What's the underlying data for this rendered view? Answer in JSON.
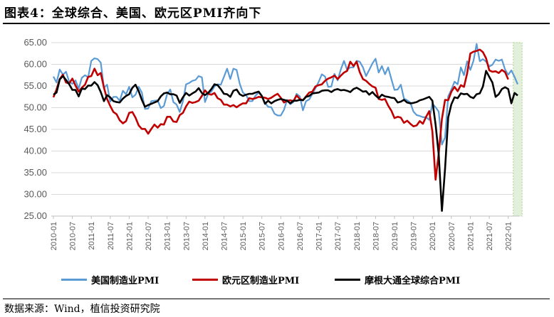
{
  "figure": {
    "title": "图表4：全球综合、美国、欧元区PMI齐向下",
    "source": "数据来源：Wind，植信投资研究院"
  },
  "chart_data": {
    "type": "line",
    "title": "",
    "xlabel": "",
    "ylabel": "",
    "ylim": [
      25,
      65
    ],
    "yticks": [
      "25.00",
      "30.00",
      "35.00",
      "40.00",
      "45.00",
      "50.00",
      "55.00",
      "60.00",
      "65.00"
    ],
    "xtick_labels": [
      "2010-01",
      "2010-07",
      "2011-01",
      "2011-07",
      "2012-01",
      "2012-07",
      "2013-01",
      "2013-07",
      "2014-01",
      "2014-07",
      "2015-01",
      "2015-07",
      "2016-01",
      "2016-07",
      "2017-01",
      "2017-07",
      "2018-01",
      "2018-07",
      "2019-01",
      "2019-07",
      "2020-01",
      "2020-07",
      "2021-01",
      "2021-07",
      "2022-01"
    ],
    "x_start": "2010-01",
    "x_end": "2022-04",
    "shaded_region": {
      "from": "2022-03",
      "to": "2022-05",
      "color": "#e2efda"
    },
    "grid": "horizontal",
    "legend_position": "bottom",
    "series": [
      {
        "name": "美国制造业PMI",
        "color": "#5b9bd5",
        "values": [
          57.2,
          55.8,
          58.8,
          57.6,
          58.3,
          56.0,
          55.5,
          56.3,
          54.4,
          56.9,
          57.5,
          57.0,
          60.8,
          61.4,
          61.2,
          60.4,
          54.6,
          55.3,
          51.4,
          52.5,
          52.5,
          51.6,
          53.9,
          53.1,
          54.8,
          52.4,
          53.0,
          54.8,
          53.5,
          49.7,
          49.8,
          51.5,
          51.6,
          51.7,
          49.9,
          50.4,
          53.1,
          54.2,
          51.3,
          50.7,
          49.0,
          51.5,
          55.4,
          55.7,
          56.2,
          56.4,
          57.3,
          57.0,
          51.3,
          53.2,
          53.7,
          54.9,
          55.4,
          55.3,
          57.1,
          59.0,
          56.6,
          59.0,
          58.7,
          55.5,
          53.5,
          52.9,
          51.5,
          51.5,
          52.8,
          53.5,
          52.7,
          51.1,
          50.2,
          50.1,
          48.6,
          48.2,
          48.2,
          49.5,
          51.8,
          50.8,
          51.3,
          53.2,
          52.6,
          49.4,
          51.5,
          51.9,
          53.2,
          54.5,
          56.0,
          57.7,
          57.2,
          54.8,
          54.9,
          57.8,
          56.3,
          58.8,
          60.8,
          58.7,
          59.3,
          59.3,
          60.8,
          60.6,
          59.3,
          57.3,
          58.7,
          60.2,
          61.3,
          58.1,
          59.6,
          57.7,
          59.3,
          56.6,
          54.1,
          54.2,
          55.3,
          52.1,
          51.7,
          51.2,
          49.1,
          48.3,
          48.1,
          47.8,
          47.8,
          47.2,
          50.9,
          50.1,
          49.1,
          41.5,
          43.1,
          52.6,
          54.2,
          56.0,
          55.4,
          59.3,
          57.5,
          60.7,
          58.7,
          60.8,
          64.7,
          60.7,
          61.2,
          60.6,
          59.5,
          59.9,
          61.1,
          60.8,
          61.1,
          58.8,
          57.6,
          58.6,
          57.1,
          55.4
        ]
      },
      {
        "name": "欧元区制造业PMI",
        "color": "#c00000",
        "values": [
          52.4,
          54.2,
          56.6,
          57.6,
          55.8,
          55.6,
          56.7,
          55.1,
          53.7,
          54.6,
          55.3,
          57.1,
          57.3,
          59.0,
          57.5,
          58.0,
          54.6,
          52.0,
          50.4,
          49.0,
          48.5,
          47.1,
          46.4,
          46.9,
          48.8,
          49.0,
          47.7,
          45.9,
          45.1,
          45.1,
          44.0,
          45.1,
          46.1,
          45.4,
          46.2,
          46.1,
          47.9,
          47.9,
          46.8,
          46.7,
          48.3,
          48.8,
          50.3,
          51.4,
          51.1,
          51.3,
          51.6,
          52.7,
          54.0,
          53.2,
          53.0,
          53.4,
          52.2,
          51.8,
          50.7,
          50.7,
          50.3,
          50.6,
          50.1,
          50.6,
          51.0,
          51.0,
          52.2,
          52.0,
          52.2,
          52.5,
          52.4,
          52.3,
          52.0,
          52.3,
          52.8,
          53.2,
          52.3,
          51.2,
          51.6,
          51.7,
          51.5,
          52.8,
          52.0,
          51.7,
          52.6,
          53.5,
          53.7,
          54.9,
          55.2,
          55.4,
          56.2,
          56.7,
          57.0,
          57.4,
          56.6,
          57.4,
          58.1,
          58.5,
          60.6,
          59.6,
          60.6,
          58.2,
          56.6,
          56.2,
          55.5,
          54.9,
          54.6,
          52.0,
          51.8,
          52.0,
          50.5,
          49.3,
          47.6,
          47.9,
          47.7,
          46.5,
          47.0,
          46.3,
          45.7,
          45.9,
          46.9,
          46.3,
          47.9,
          49.2,
          44.5,
          33.4,
          39.4,
          47.4,
          51.8,
          51.7,
          53.7,
          54.8,
          53.8,
          55.2,
          54.8,
          57.9,
          62.5,
          62.9,
          63.1,
          63.4,
          62.8,
          61.4,
          58.6,
          58.3,
          58.4,
          58.0,
          58.7,
          58.2,
          56.5
        ]
      },
      {
        "name": "摩根大通全球综合PMI",
        "color": "#000000",
        "values": [
          53.0,
          53.5,
          56.5,
          57.3,
          56.4,
          55.4,
          54.1,
          54.1,
          52.6,
          54.4,
          54.3,
          55.1,
          55.1,
          55.9,
          55.2,
          53.6,
          51.5,
          52.9,
          52.4,
          51.5,
          51.3,
          51.2,
          52.1,
          52.7,
          53.1,
          54.6,
          55.3,
          53.8,
          51.8,
          50.2,
          50.6,
          50.9,
          51.2,
          51.5,
          52.6,
          53.3,
          53.5,
          53.1,
          53.1,
          52.8,
          51.1,
          52.4,
          53.4,
          52.8,
          53.3,
          53.7,
          54.5,
          53.4,
          52.9,
          53.4,
          54.3,
          55.4,
          55.2,
          54.3,
          53.2,
          53.1,
          52.5,
          53.9,
          54.2,
          53.1,
          52.7,
          53.0,
          53.2,
          53.2,
          53.5,
          53.7,
          52.7,
          50.9,
          51.6,
          51.0,
          51.5,
          51.8,
          52.0,
          51.8,
          51.6,
          51.0,
          51.6,
          51.6,
          51.8,
          51.7,
          52.5,
          52.7,
          53.3,
          53.4,
          53.5,
          53.9,
          54.0,
          54.0,
          53.6,
          54.1,
          54.3,
          54.0,
          54.1,
          53.9,
          53.6,
          54.3,
          54.6,
          54.2,
          53.7,
          53.8,
          53.0,
          53.6,
          52.8,
          52.2,
          53.0,
          52.6,
          52.5,
          52.3,
          52.2,
          51.2,
          51.4,
          51.8,
          51.2,
          51.0,
          51.1,
          51.3,
          51.7,
          51.9,
          52.2,
          52.5,
          51.6,
          46.1,
          39.2,
          26.2,
          35.9,
          47.7,
          50.8,
          52.4,
          52.2,
          53.3,
          53.1,
          53.2,
          52.5,
          52.2,
          53.1,
          53.3,
          54.9,
          58.5,
          57.1,
          55.8,
          52.5,
          53.1,
          54.3,
          54.7,
          54.3,
          51.0,
          53.4,
          52.8
        ]
      }
    ]
  }
}
